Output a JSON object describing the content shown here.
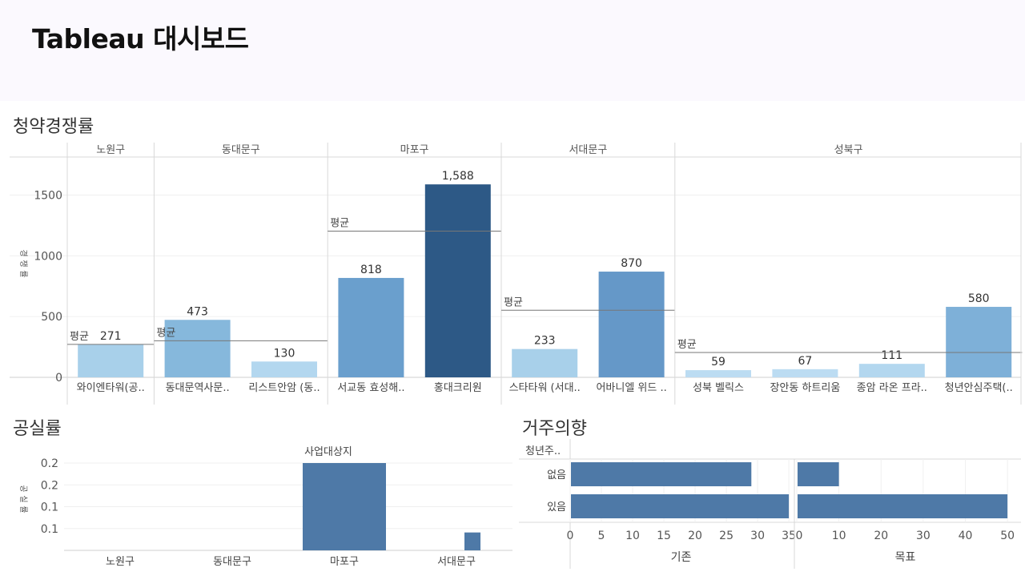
{
  "slide": {
    "title": "Tableau 대시보드"
  },
  "sections": {
    "competition": "청약경쟁률",
    "vacancy": "공실률",
    "intention": "거주의향"
  },
  "chart_data": [
    {
      "type": "bar",
      "title": "청약경쟁률",
      "ylabel": "경쟁률",
      "ylim": [
        0,
        1800
      ],
      "yticks": [
        "0",
        "500",
        "1000",
        "1500"
      ],
      "avg_label": "평균",
      "groups": [
        {
          "name": "노원구",
          "average": 271,
          "bars": [
            {
              "label": "와이엔타워(공..",
              "value": 271,
              "value_label": "271",
              "color": "#a8d0ea"
            }
          ]
        },
        {
          "name": "동대문구",
          "average": 301,
          "bars": [
            {
              "label": "동대문역사문..",
              "value": 473,
              "value_label": "473",
              "color": "#86b8dc"
            },
            {
              "label": "리스트안암 (동..",
              "value": 130,
              "value_label": "130",
              "color": "#b3d7ef"
            }
          ]
        },
        {
          "name": "마포구",
          "average": 1203,
          "bars": [
            {
              "label": "서교동 효성해..",
              "value": 818,
              "value_label": "818",
              "color": "#6a9fcd"
            },
            {
              "label": "홍대크리원",
              "value": 1588,
              "value_label": "1,588",
              "color": "#2d5986"
            }
          ]
        },
        {
          "name": "서대문구",
          "average": 552,
          "bars": [
            {
              "label": "스타타워 (서대..",
              "value": 233,
              "value_label": "233",
              "color": "#a8d0ea"
            },
            {
              "label": "어바니엘 위드 ..",
              "value": 870,
              "value_label": "870",
              "color": "#6598c8"
            }
          ]
        },
        {
          "name": "성북구",
          "average": 204,
          "bars": [
            {
              "label": "성북 벨릭스",
              "value": 59,
              "value_label": "59",
              "color": "#bcdcf2"
            },
            {
              "label": "장안동 하트리움",
              "value": 67,
              "value_label": "67",
              "color": "#bcdcf2"
            },
            {
              "label": "종암 라온 프라..",
              "value": 111,
              "value_label": "111",
              "color": "#b3d7ef"
            },
            {
              "label": "청년안심주택(..",
              "value": 580,
              "value_label": "580",
              "color": "#7eb0d8"
            }
          ]
        }
      ]
    },
    {
      "type": "bar",
      "title": "공실률",
      "header": "사업대상지",
      "ylabel": "공실률",
      "ylim": [
        0,
        0.2
      ],
      "yticks": [
        {
          "v": 0.05,
          "label": "0.1"
        },
        {
          "v": 0.1,
          "label": "0.1"
        },
        {
          "v": 0.15,
          "label": "0.2"
        },
        {
          "v": 0.2,
          "label": "0.2"
        }
      ],
      "categories": [
        "노원구",
        "동대문구",
        "마포구",
        "서대문구"
      ],
      "values": [
        0,
        0,
        0.2,
        0.041
      ],
      "color": "#4e79a7"
    },
    {
      "type": "bar",
      "title": "거주의향",
      "header": "청년주..",
      "categories": [
        "없음",
        "있음"
      ],
      "color": "#4e79a7",
      "panels": [
        {
          "name": "기존",
          "values": [
            29,
            35
          ],
          "xlim": [
            0,
            35.5
          ],
          "ticks": [
            0,
            5,
            10,
            15,
            20,
            25,
            30,
            35
          ]
        },
        {
          "name": "목표",
          "values": [
            10,
            50
          ],
          "xlim": [
            0,
            51.5
          ],
          "ticks": [
            0,
            10,
            20,
            30,
            40,
            50
          ]
        }
      ]
    }
  ]
}
